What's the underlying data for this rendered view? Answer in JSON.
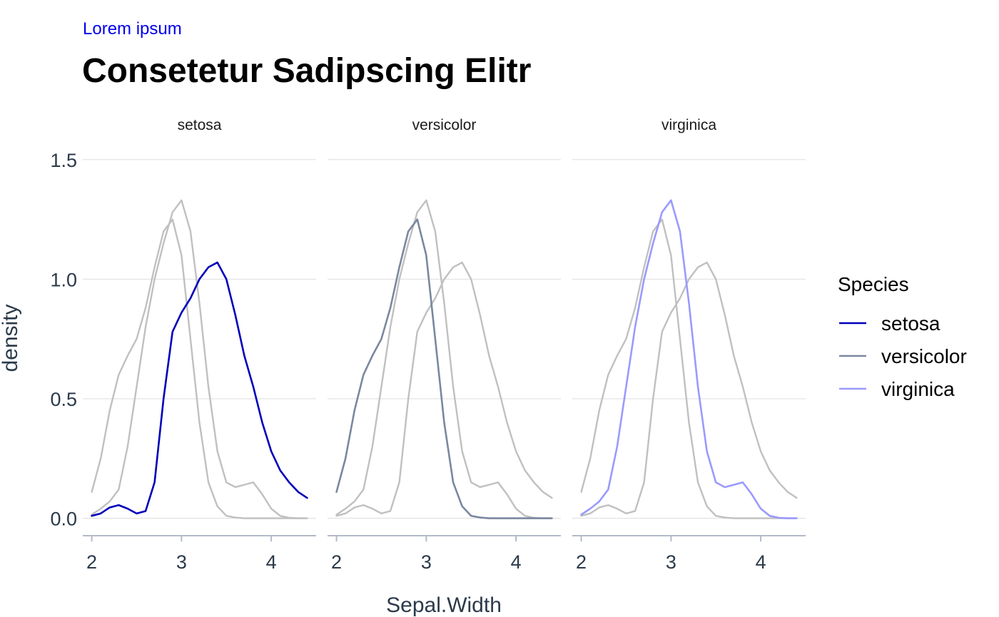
{
  "subtitle": "Lorem ipsum",
  "title": "Consetetur Sadipscing Elitr",
  "chart_data": {
    "type": "line",
    "kind": "faceted density",
    "facet_by": "Species",
    "facets": [
      "setosa",
      "versicolor",
      "virginica"
    ],
    "xlabel": "Sepal.Width",
    "ylabel": "density",
    "xlim": [
      1.9,
      4.5
    ],
    "ylim": [
      -0.07,
      1.58
    ],
    "x_ticks": [
      2,
      3,
      4
    ],
    "y_ticks": [
      0.0,
      0.5,
      1.0,
      1.5
    ],
    "y_tick_labels": [
      "0.0",
      "0.5",
      "1.0",
      "1.5"
    ],
    "grid": "horizontal major lines",
    "legend": {
      "title": "Species",
      "position": "right"
    },
    "background_color": "#c0c0c0",
    "series": [
      {
        "name": "setosa",
        "color": "#0000bb",
        "points": [
          [
            2.0,
            0.01
          ],
          [
            2.1,
            0.02
          ],
          [
            2.2,
            0.045
          ],
          [
            2.3,
            0.055
          ],
          [
            2.4,
            0.04
          ],
          [
            2.5,
            0.02
          ],
          [
            2.6,
            0.03
          ],
          [
            2.7,
            0.15
          ],
          [
            2.8,
            0.5
          ],
          [
            2.9,
            0.78
          ],
          [
            3.0,
            0.86
          ],
          [
            3.1,
            0.92
          ],
          [
            3.2,
            1.0
          ],
          [
            3.3,
            1.05
          ],
          [
            3.4,
            1.07
          ],
          [
            3.5,
            1.0
          ],
          [
            3.6,
            0.85
          ],
          [
            3.7,
            0.68
          ],
          [
            3.8,
            0.55
          ],
          [
            3.9,
            0.4
          ],
          [
            4.0,
            0.28
          ],
          [
            4.1,
            0.2
          ],
          [
            4.2,
            0.15
          ],
          [
            4.3,
            0.11
          ],
          [
            4.4,
            0.085
          ]
        ]
      },
      {
        "name": "versicolor",
        "color": "#7a889f",
        "points": [
          [
            2.0,
            0.11
          ],
          [
            2.1,
            0.25
          ],
          [
            2.2,
            0.45
          ],
          [
            2.3,
            0.6
          ],
          [
            2.4,
            0.68
          ],
          [
            2.5,
            0.75
          ],
          [
            2.6,
            0.88
          ],
          [
            2.7,
            1.05
          ],
          [
            2.8,
            1.2
          ],
          [
            2.9,
            1.25
          ],
          [
            3.0,
            1.1
          ],
          [
            3.1,
            0.75
          ],
          [
            3.2,
            0.4
          ],
          [
            3.3,
            0.15
          ],
          [
            3.4,
            0.05
          ],
          [
            3.5,
            0.01
          ],
          [
            3.6,
            0.003
          ],
          [
            3.7,
            0.0
          ],
          [
            3.8,
            0.0
          ],
          [
            3.9,
            0.0
          ],
          [
            4.0,
            0.0
          ],
          [
            4.1,
            0.0
          ],
          [
            4.2,
            0.0
          ],
          [
            4.3,
            0.0
          ],
          [
            4.4,
            0.0
          ]
        ]
      },
      {
        "name": "virginica",
        "color": "#9a9aff",
        "points": [
          [
            2.0,
            0.015
          ],
          [
            2.1,
            0.04
          ],
          [
            2.2,
            0.07
          ],
          [
            2.3,
            0.12
          ],
          [
            2.4,
            0.3
          ],
          [
            2.5,
            0.55
          ],
          [
            2.6,
            0.8
          ],
          [
            2.7,
            1.0
          ],
          [
            2.8,
            1.15
          ],
          [
            2.9,
            1.28
          ],
          [
            3.0,
            1.33
          ],
          [
            3.1,
            1.2
          ],
          [
            3.2,
            0.9
          ],
          [
            3.3,
            0.55
          ],
          [
            3.4,
            0.28
          ],
          [
            3.5,
            0.15
          ],
          [
            3.6,
            0.13
          ],
          [
            3.7,
            0.14
          ],
          [
            3.8,
            0.15
          ],
          [
            3.9,
            0.1
          ],
          [
            4.0,
            0.04
          ],
          [
            4.1,
            0.01
          ],
          [
            4.2,
            0.002
          ],
          [
            4.3,
            0.0
          ],
          [
            4.4,
            0.0
          ]
        ]
      }
    ]
  }
}
